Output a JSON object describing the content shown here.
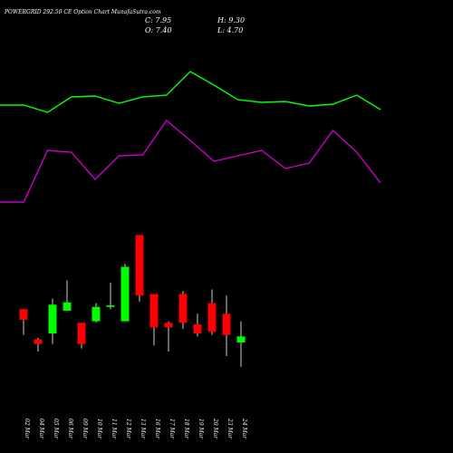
{
  "header": {
    "title": "POWERGRID 292.50  CE Option  Chart MunafaSutra.com",
    "close": "C: 7.95",
    "high": "H: 9.30",
    "open": "O: 7.40",
    "low": "L: 4.70"
  },
  "colors": {
    "background": "#000000",
    "up": "#00ff00",
    "down": "#ff0000",
    "line_green": "#00ff00",
    "line_magenta": "#cc00cc",
    "text": "#ffffff"
  },
  "chart_data": {
    "type": "candlestick",
    "dates": [
      "02 Mar",
      "04 Mar",
      "05 Mar",
      "06 Mar",
      "09 Mar",
      "10 Mar",
      "11 Mar",
      "12 Mar",
      "13 Mar",
      "16 Mar",
      "17 Mar",
      "18 Mar",
      "19 Mar",
      "20 Mar",
      "23 Mar",
      "24 Mar"
    ],
    "candles": [
      {
        "open": 44,
        "close": 30,
        "high": 44,
        "low": 10
      },
      {
        "open": 4,
        "close": -2,
        "high": 6,
        "low": -12
      },
      {
        "open": 12,
        "close": 50,
        "high": 58,
        "low": -2
      },
      {
        "open": 42,
        "close": 53,
        "high": 82,
        "low": 42
      },
      {
        "open": 26,
        "close": -2,
        "high": 26,
        "low": -8
      },
      {
        "open": 28,
        "close": 47,
        "high": 52,
        "low": 26
      },
      {
        "open": 47,
        "close": 49,
        "high": 79,
        "low": 44
      },
      {
        "open": 28,
        "close": 100,
        "high": 104,
        "low": 28
      },
      {
        "open": 142,
        "close": 62,
        "high": 142,
        "low": 54
      },
      {
        "open": 64,
        "close": 20,
        "high": 64,
        "low": -4
      },
      {
        "open": 26,
        "close": 20,
        "high": 28,
        "low": -12
      },
      {
        "open": 64,
        "close": 26,
        "high": 68,
        "low": 18
      },
      {
        "open": 24,
        "close": 12,
        "high": 38,
        "low": 8
      },
      {
        "open": 52,
        "close": 14,
        "high": 70,
        "low": 10
      },
      {
        "open": 38,
        "close": 10,
        "high": 62,
        "low": -18
      },
      {
        "open": 0,
        "close": 8,
        "high": 28,
        "low": -32
      }
    ],
    "line_green": [
      316,
      316,
      308,
      325,
      326,
      318,
      325,
      327,
      353,
      338,
      322,
      319,
      320,
      315,
      317,
      327,
      311
    ],
    "line_magenta": [
      209,
      209,
      266,
      264,
      234,
      260,
      261,
      299,
      277,
      254,
      260,
      266,
      246,
      252,
      288,
      264,
      230
    ]
  }
}
